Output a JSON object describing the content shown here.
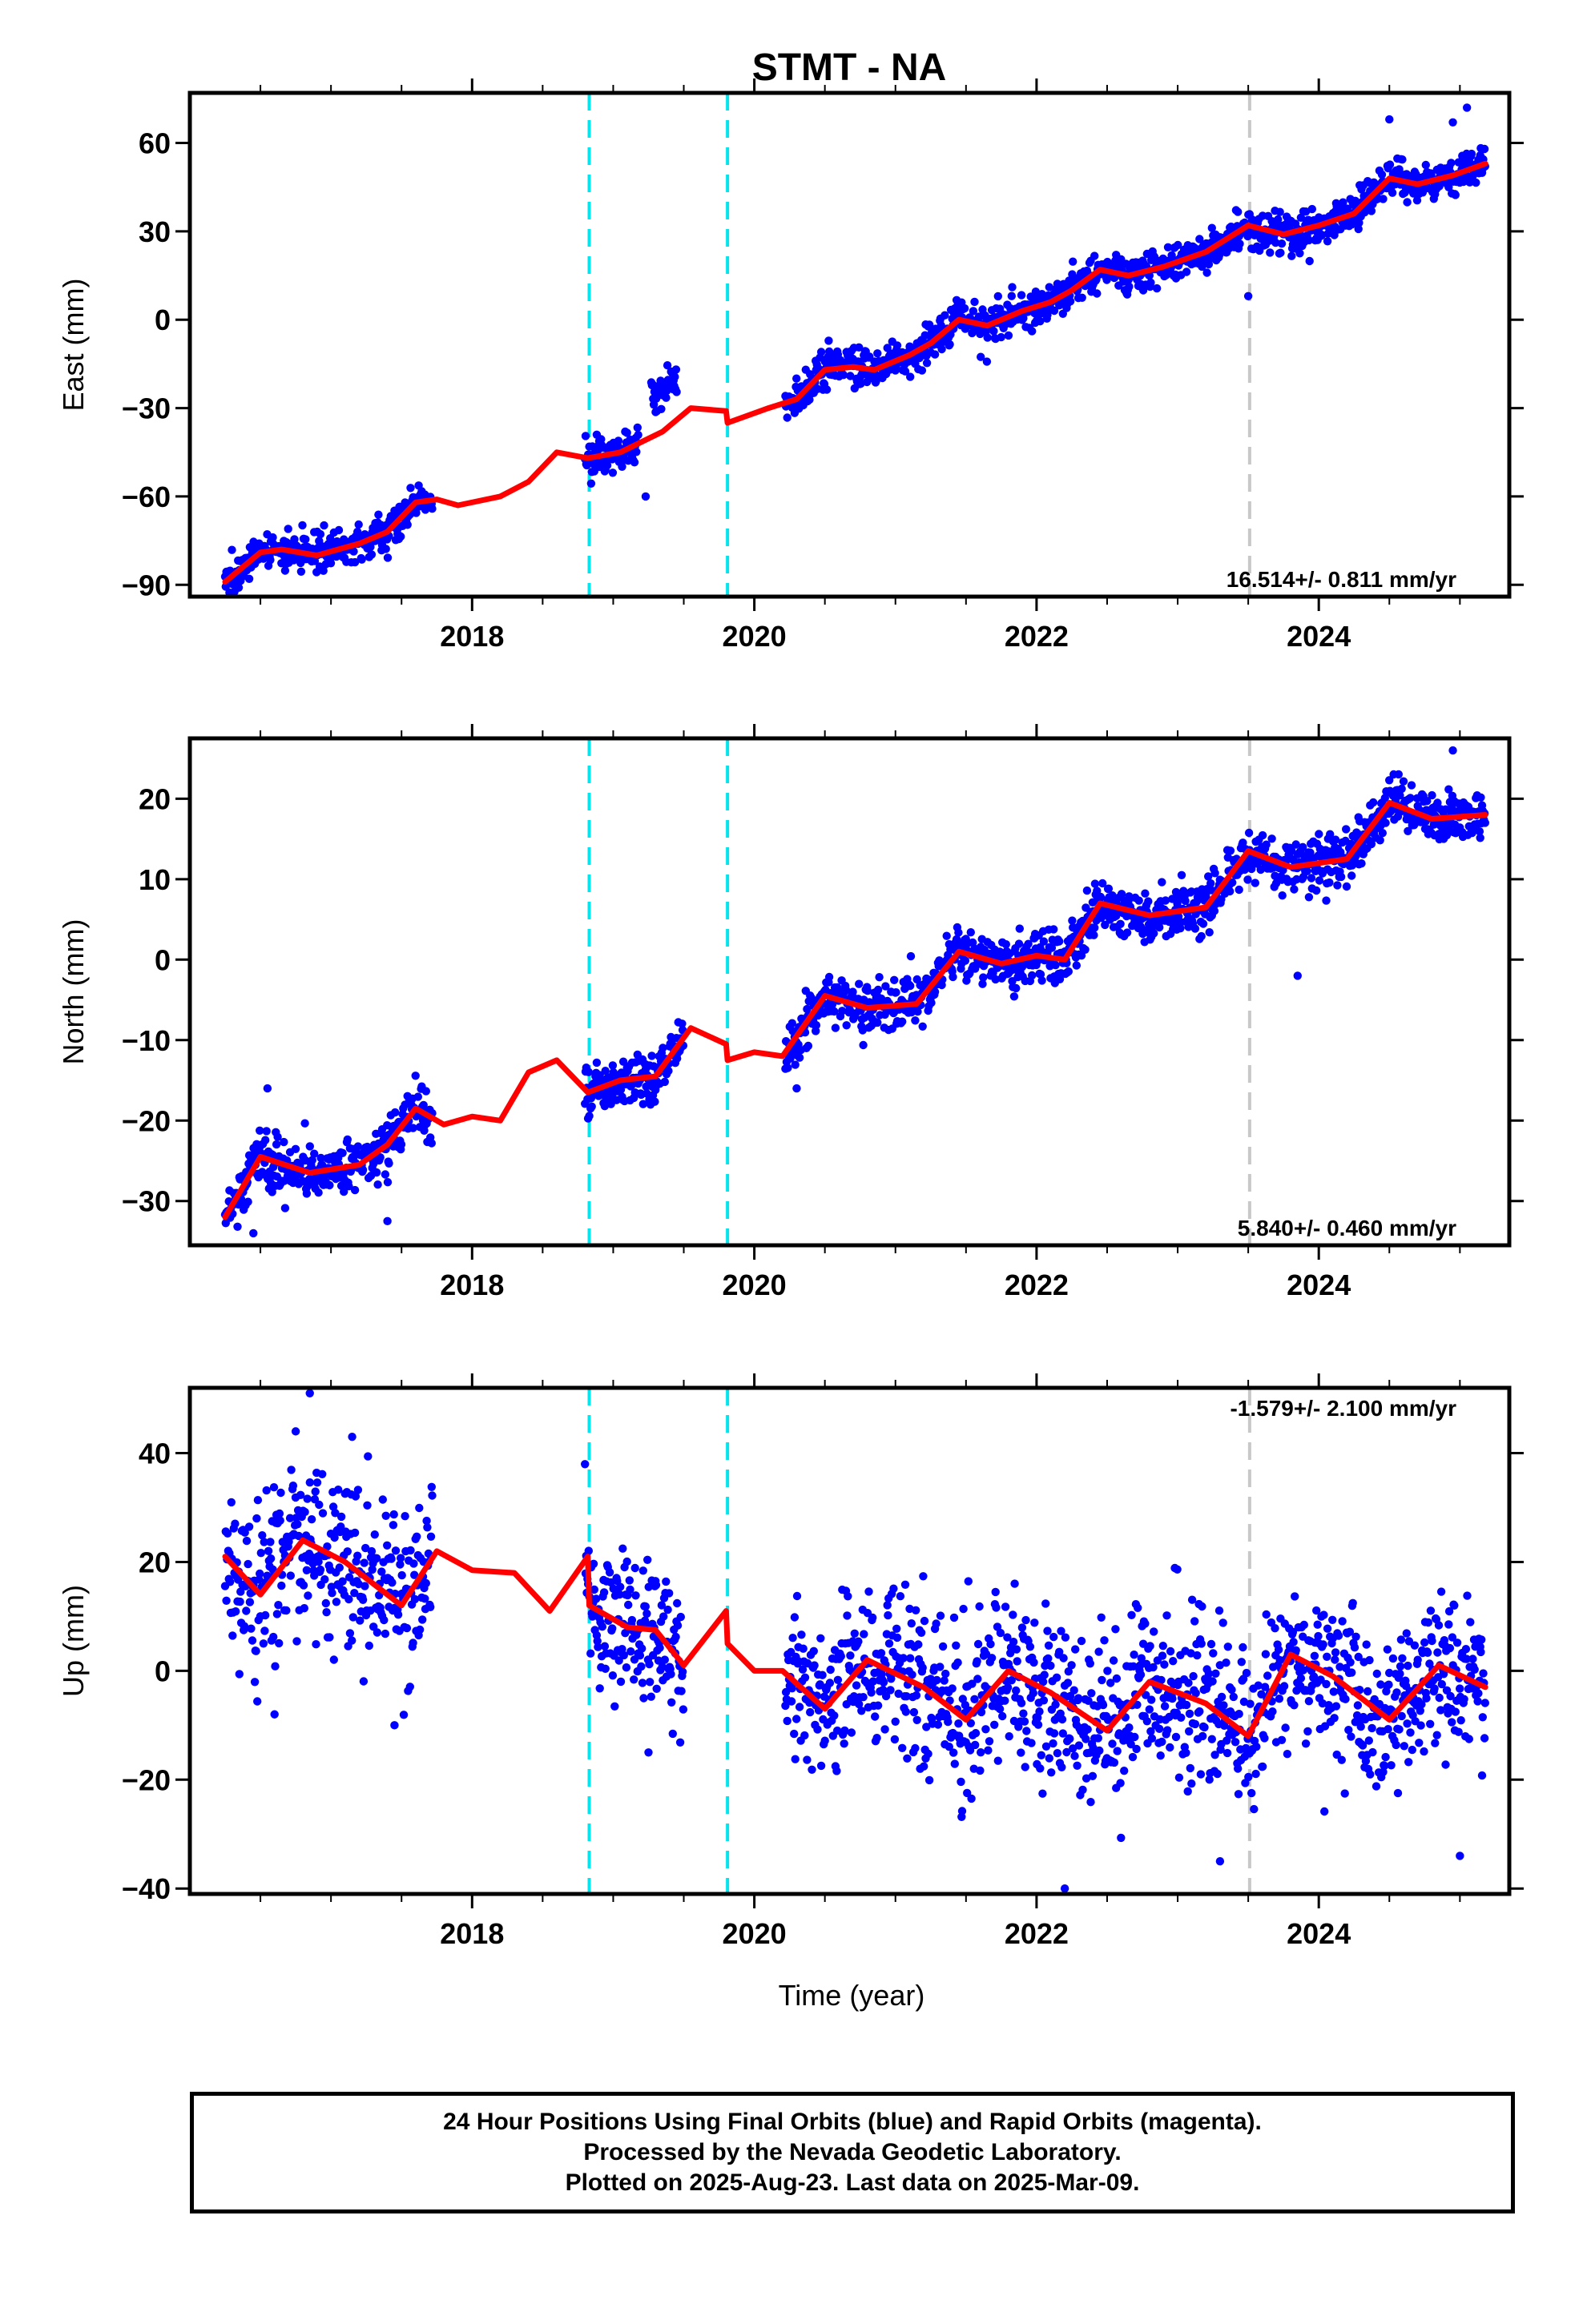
{
  "title": "STMT - NA",
  "x_axis": {
    "label": "Time (year)",
    "range": [
      2016.0,
      2025.35
    ],
    "ticks": [
      2018,
      2020,
      2022,
      2024
    ],
    "tick_labels": [
      "2018",
      "2020",
      "2022",
      "2024"
    ],
    "minor_ticks": [
      2016.5,
      2017.0,
      2017.5,
      2018.0,
      2018.5,
      2019.0,
      2019.5,
      2020.0,
      2020.5,
      2021.0,
      2021.5,
      2022.0,
      2022.5,
      2023.0,
      2023.5,
      2024.0,
      2024.5,
      2025.0
    ]
  },
  "colors": {
    "points": "#0000ff",
    "model": "#ff0000",
    "equipment_change": "#00e5ee",
    "other_event": "#c8c8c8",
    "frame": "#000000"
  },
  "events": [
    {
      "year": 2018.83,
      "kind": "equipment_change"
    },
    {
      "year": 2019.81,
      "kind": "equipment_change"
    },
    {
      "year": 2023.51,
      "kind": "other_event"
    }
  ],
  "chart_data": [
    {
      "type": "scatter",
      "component": "east",
      "ylabel": "East (mm)",
      "ylim": [
        -94,
        77
      ],
      "yticks": [
        -90,
        -60,
        -30,
        0,
        30,
        60
      ],
      "ytick_labels": [
        "−90",
        "−60",
        "−30",
        "0",
        "30",
        "60"
      ],
      "rate_label": "16.514+/- 0.811 mm/yr",
      "rate_position": "bottom-right",
      "noise": 3.2,
      "outliers": [
        [
          2019.23,
          -60
        ],
        [
          2016.35,
          -85
        ],
        [
          2023.5,
          8
        ],
        [
          2024.5,
          68
        ],
        [
          2025.05,
          72
        ],
        [
          2024.95,
          67
        ]
      ],
      "data_segments": [
        [
          2016.25,
          2017.72
        ],
        [
          2018.8,
          2019.18
        ],
        [
          2019.27,
          2019.45
        ],
        [
          2020.22,
          2025.18
        ]
      ],
      "trend": [
        [
          2016.25,
          -89
        ],
        [
          2016.5,
          -79
        ],
        [
          2016.65,
          -78
        ],
        [
          2016.9,
          -80
        ],
        [
          2017.2,
          -76
        ],
        [
          2017.4,
          -72
        ],
        [
          2017.6,
          -62
        ],
        [
          2017.75,
          -61
        ],
        [
          2017.9,
          -63
        ],
        [
          2018.2,
          -60
        ],
        [
          2018.4,
          -55
        ],
        [
          2018.6,
          -45
        ],
        [
          2018.82,
          -47
        ],
        [
          2019.05,
          -45
        ],
        [
          2019.35,
          -38
        ],
        [
          2019.55,
          -30
        ],
        [
          2019.8,
          -31
        ],
        [
          2019.81,
          -35
        ],
        [
          2020.1,
          -30
        ],
        [
          2020.3,
          -27
        ],
        [
          2020.5,
          -17
        ],
        [
          2020.7,
          -16
        ],
        [
          2020.85,
          -17
        ],
        [
          2021.1,
          -12
        ],
        [
          2021.25,
          -8
        ],
        [
          2021.45,
          0
        ],
        [
          2021.65,
          -2
        ],
        [
          2021.9,
          3
        ],
        [
          2022.1,
          6
        ],
        [
          2022.25,
          10
        ],
        [
          2022.45,
          17
        ],
        [
          2022.65,
          15
        ],
        [
          2022.9,
          18
        ],
        [
          2023.2,
          23
        ],
        [
          2023.5,
          32
        ],
        [
          2023.75,
          29
        ],
        [
          2024.0,
          32
        ],
        [
          2024.25,
          36
        ],
        [
          2024.5,
          48
        ],
        [
          2024.7,
          46
        ],
        [
          2024.95,
          49
        ],
        [
          2025.18,
          53
        ]
      ],
      "offsets": [
        {
          "x": [
            2019.27,
            2019.45
          ],
          "dy": 14
        }
      ]
    },
    {
      "type": "scatter",
      "component": "north",
      "ylabel": "North (mm)",
      "ylim": [
        -35.5,
        27.5
      ],
      "yticks": [
        -30,
        -20,
        -10,
        0,
        10,
        20
      ],
      "ytick_labels": [
        "−30",
        "−20",
        "−10",
        "0",
        "10",
        "20"
      ],
      "rate_label": "5.840+/- 0.460 mm/yr",
      "rate_position": "bottom-right",
      "noise": 1.6,
      "outliers": [
        [
          2017.4,
          -32.5
        ],
        [
          2016.45,
          -34
        ],
        [
          2023.85,
          -2
        ],
        [
          2024.95,
          26
        ],
        [
          2016.55,
          -16
        ],
        [
          2020.3,
          -16
        ]
      ],
      "data_segments": [
        [
          2016.25,
          2017.72
        ],
        [
          2018.8,
          2019.5
        ],
        [
          2020.22,
          2025.18
        ]
      ],
      "trend": [
        [
          2016.25,
          -32
        ],
        [
          2016.5,
          -24.5
        ],
        [
          2016.85,
          -26.5
        ],
        [
          2017.2,
          -25.5
        ],
        [
          2017.4,
          -23
        ],
        [
          2017.6,
          -18.5
        ],
        [
          2017.8,
          -20.5
        ],
        [
          2018.0,
          -19.5
        ],
        [
          2018.2,
          -20
        ],
        [
          2018.4,
          -14
        ],
        [
          2018.6,
          -12.5
        ],
        [
          2018.82,
          -16.5
        ],
        [
          2019.05,
          -15
        ],
        [
          2019.3,
          -14.5
        ],
        [
          2019.55,
          -8.5
        ],
        [
          2019.8,
          -10.5
        ],
        [
          2019.81,
          -12.5
        ],
        [
          2020.0,
          -11.5
        ],
        [
          2020.2,
          -12
        ],
        [
          2020.5,
          -4.5
        ],
        [
          2020.8,
          -6
        ],
        [
          2021.15,
          -5.5
        ],
        [
          2021.45,
          1
        ],
        [
          2021.75,
          -0.5
        ],
        [
          2022.0,
          0.5
        ],
        [
          2022.2,
          0
        ],
        [
          2022.45,
          7
        ],
        [
          2022.8,
          5.5
        ],
        [
          2023.2,
          6.5
        ],
        [
          2023.5,
          13.5
        ],
        [
          2023.8,
          11.5
        ],
        [
          2024.2,
          12.5
        ],
        [
          2024.5,
          19.5
        ],
        [
          2024.8,
          17.5
        ],
        [
          2025.18,
          18
        ]
      ]
    },
    {
      "type": "scatter",
      "component": "up",
      "ylabel": "Up (mm)",
      "ylim": [
        -41,
        52
      ],
      "yticks": [
        -40,
        -20,
        0,
        20,
        40
      ],
      "ytick_labels": [
        "−40",
        "−20",
        "0",
        "20",
        "40"
      ],
      "rate_label": "-1.579+/- 2.100 mm/yr",
      "rate_position": "top-right",
      "noise": 7.5,
      "outliers": [
        [
          2016.85,
          51
        ],
        [
          2016.75,
          44
        ],
        [
          2017.15,
          43
        ],
        [
          2022.2,
          -40
        ],
        [
          2025.0,
          -34
        ],
        [
          2023.3,
          -35
        ],
        [
          2016.6,
          -8
        ],
        [
          2017.45,
          -10
        ],
        [
          2019.25,
          -15
        ]
      ],
      "data_segments": [
        [
          2016.25,
          2017.72
        ],
        [
          2018.8,
          2019.5
        ],
        [
          2020.22,
          2025.18
        ]
      ],
      "trend": [
        [
          2016.25,
          21
        ],
        [
          2016.5,
          14
        ],
        [
          2016.8,
          24
        ],
        [
          2017.1,
          20
        ],
        [
          2017.5,
          12
        ],
        [
          2017.75,
          22
        ],
        [
          2018.0,
          18.5
        ],
        [
          2018.3,
          18
        ],
        [
          2018.55,
          11
        ],
        [
          2018.82,
          21
        ],
        [
          2018.83,
          12
        ],
        [
          2019.1,
          8
        ],
        [
          2019.3,
          7.5
        ],
        [
          2019.5,
          1
        ],
        [
          2019.8,
          11
        ],
        [
          2019.81,
          5
        ],
        [
          2020.0,
          0
        ],
        [
          2020.2,
          0
        ],
        [
          2020.5,
          -7
        ],
        [
          2020.8,
          2
        ],
        [
          2021.2,
          -3
        ],
        [
          2021.5,
          -9
        ],
        [
          2021.8,
          0
        ],
        [
          2022.1,
          -4
        ],
        [
          2022.5,
          -11
        ],
        [
          2022.8,
          -2
        ],
        [
          2023.2,
          -6
        ],
        [
          2023.5,
          -12
        ],
        [
          2023.8,
          3
        ],
        [
          2024.1,
          -1
        ],
        [
          2024.5,
          -9
        ],
        [
          2024.85,
          1
        ],
        [
          2025.18,
          -3
        ]
      ]
    }
  ],
  "caption": {
    "line1": "24 Hour Positions Using Final Orbits (blue) and Rapid Orbits (magenta).",
    "line2": "Processed by the Nevada Geodetic Laboratory.",
    "line3": "Plotted on 2025-Aug-23. Last data on 2025-Mar-09."
  }
}
